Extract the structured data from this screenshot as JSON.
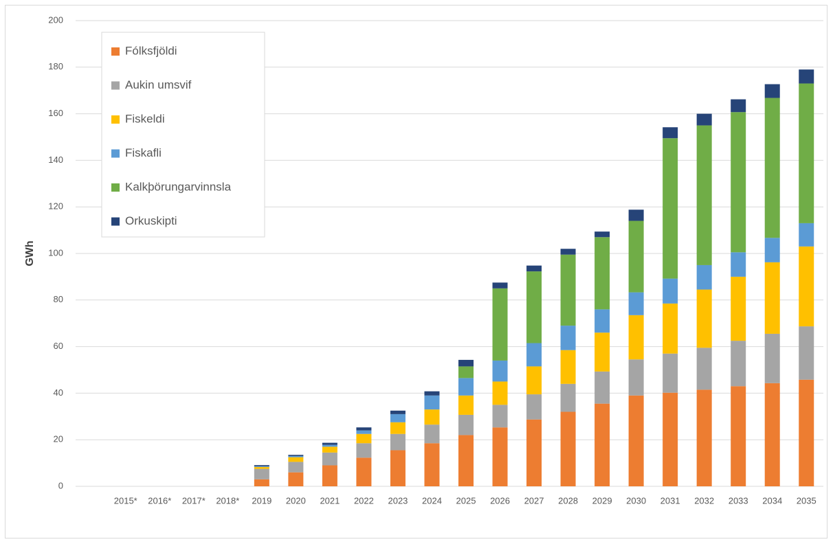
{
  "chart_data": {
    "type": "stacked_bar",
    "y_label": "GWh",
    "categories": [
      "2015*",
      "2016*",
      "2017*",
      "2018*",
      "2019",
      "2020",
      "2021",
      "2022",
      "2023",
      "2024",
      "2025",
      "2026",
      "2027",
      "2028",
      "2029",
      "2030",
      "2031",
      "2032",
      "2033",
      "2034",
      "2035"
    ],
    "series": [
      {
        "name": "Fólksfjöldi",
        "color": "#ed7d31",
        "values": [
          0,
          0,
          0,
          0,
          3,
          6,
          9,
          12.3,
          15.5,
          18.5,
          22,
          25.3,
          28.7,
          32,
          35.5,
          39,
          40.2,
          41.5,
          43,
          44.3,
          45.8
        ]
      },
      {
        "name": "Aukin umsvif",
        "color": "#a5a5a5",
        "values": [
          0,
          0,
          0,
          0,
          4.5,
          4.5,
          5.5,
          6.2,
          7,
          8,
          8.7,
          9.7,
          10.8,
          12,
          13.8,
          15.5,
          16.8,
          18,
          19.5,
          21.2,
          22.9
        ]
      },
      {
        "name": "Fiskeldi",
        "color": "#ffc000",
        "values": [
          0,
          0,
          0,
          0,
          0.8,
          2,
          2.5,
          4,
          5,
          6.5,
          8.3,
          10,
          12,
          14.5,
          16.7,
          19,
          21.5,
          25,
          27.5,
          30.7,
          34.3
        ]
      },
      {
        "name": "Fiskafli",
        "color": "#5b9bd5",
        "values": [
          0,
          0,
          0,
          0,
          0.3,
          0.5,
          0.8,
          1.5,
          3.5,
          6,
          7.5,
          9,
          10,
          10.5,
          10,
          9.8,
          10.7,
          10.5,
          10.5,
          10.5,
          10
        ]
      },
      {
        "name": "Kalkþörungarvinnsla",
        "color": "#70ad47",
        "values": [
          0,
          0,
          0,
          0,
          0,
          0,
          0,
          0,
          0,
          0,
          5,
          31,
          30.8,
          30.5,
          31,
          30.7,
          60.3,
          60,
          60.2,
          60.1,
          60
        ]
      },
      {
        "name": "Orkuskipti",
        "color": "#264478",
        "values": [
          0,
          0,
          0,
          0,
          0.5,
          0.5,
          0.9,
          1.3,
          1.5,
          1.8,
          2.8,
          2.5,
          2.5,
          2.5,
          2.4,
          4.8,
          4.7,
          5,
          5.5,
          5.9,
          6
        ]
      }
    ],
    "ylim": [
      0,
      200
    ],
    "yticks": [
      0,
      20,
      40,
      60,
      80,
      100,
      120,
      140,
      160,
      180,
      200
    ],
    "grid": true,
    "legend": "upper left"
  }
}
